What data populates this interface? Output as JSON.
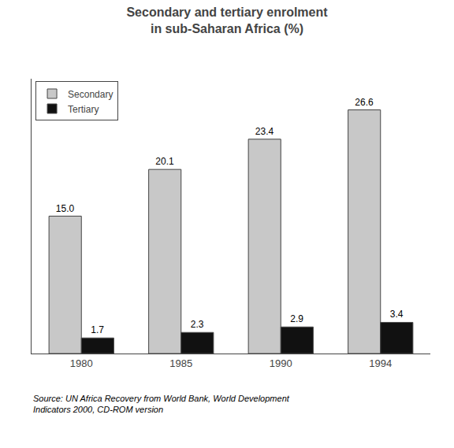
{
  "chart_data": {
    "type": "bar",
    "title": "Secondary and tertiary enrolment\nin sub-Saharan Africa (%)",
    "categories": [
      "1980",
      "1985",
      "1990",
      "1994"
    ],
    "series": [
      {
        "name": "Secondary",
        "color": "#c8c8c8",
        "values": [
          15.0,
          20.1,
          23.4,
          26.6
        ],
        "value_labels": [
          "15.0",
          "20.1",
          "23.4",
          "26.6"
        ]
      },
      {
        "name": "Tertiary",
        "color": "#111111",
        "values": [
          1.7,
          2.3,
          2.9,
          3.4
        ]
      }
    ],
    "annotations": [
      "Source: UN Africa Recovery from World Bank, World Development\nIndicators 2000, CD-ROM version"
    ],
    "ylim": [
      0,
      30
    ],
    "data_labels": true,
    "tick_labels": "x",
    "grid": false,
    "legend": "upper left"
  }
}
